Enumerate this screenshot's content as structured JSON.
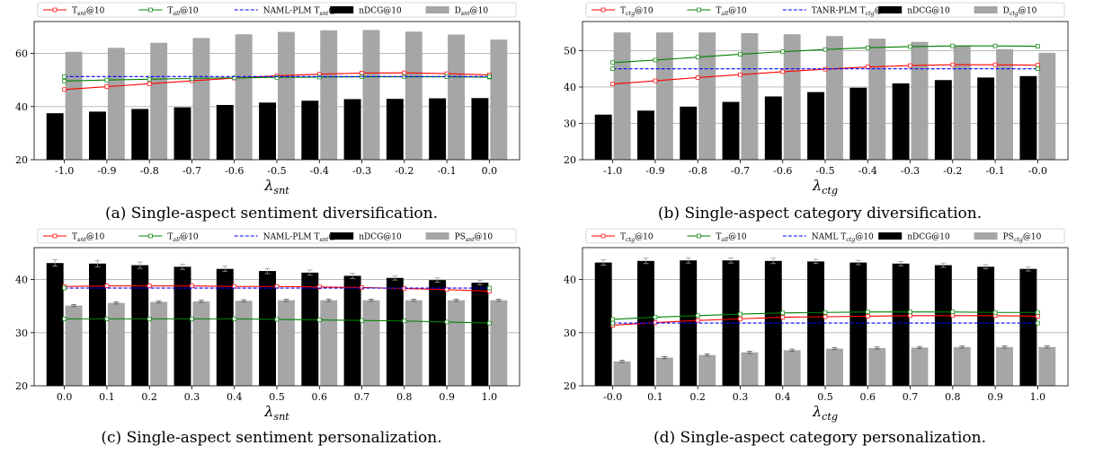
{
  "chart_data": [
    {
      "type": "bar",
      "caption": "(a) Single-aspect sentiment diversification.",
      "xlabel_main": "λ",
      "xlabel_sub": "snt",
      "categories": [
        "-1.0",
        "-0.9",
        "-0.8",
        "-0.7",
        "-0.6",
        "-0.5",
        "-0.4",
        "-0.3",
        "-0.2",
        "-0.1",
        "0.0"
      ],
      "ylim": [
        20,
        72
      ],
      "yticks": [
        20,
        40,
        60
      ],
      "grid": "horizontal",
      "legend_position": "top",
      "bar_series": [
        {
          "name": "nDCG@10",
          "color": "#000000",
          "values": [
            37.5,
            38.1,
            39.1,
            39.7,
            40.6,
            41.5,
            42.2,
            42.8,
            42.9,
            43.1,
            43.2
          ]
        },
        {
          "name": "D_snt@10",
          "color": "#a6a6a6",
          "values": [
            60.6,
            62.1,
            64.0,
            65.8,
            67.2,
            68.1,
            68.7,
            68.8,
            68.2,
            67.1,
            65.2
          ]
        }
      ],
      "line_series": [
        {
          "name": "T_snt@10",
          "color": "#ff0000",
          "values": [
            46.4,
            47.5,
            48.6,
            49.7,
            50.7,
            51.6,
            52.2,
            52.6,
            52.7,
            52.4,
            51.9
          ]
        },
        {
          "name": "T_all@10",
          "color": "#008000",
          "values": [
            49.6,
            50.0,
            50.3,
            50.6,
            50.8,
            51.0,
            51.1,
            51.2,
            51.2,
            51.2,
            51.1
          ]
        },
        {
          "name": "NAML-PLM T_snt@10",
          "color": "#0000ff",
          "dashed": true,
          "values": [
            51.3,
            51.3,
            51.3,
            51.3,
            51.3,
            51.3,
            51.3,
            51.3,
            51.3,
            51.3,
            51.3
          ]
        }
      ],
      "legend": [
        {
          "kind": "line",
          "label": "T",
          "sub": "snt",
          "post": "@10",
          "color": "#ff0000"
        },
        {
          "kind": "line",
          "label": "T",
          "sub": "all",
          "post": "@10",
          "color": "#008000"
        },
        {
          "kind": "dash",
          "label": "NAML-PLM T",
          "sub": "snt",
          "post": "@10",
          "color": "#0000ff"
        },
        {
          "kind": "bar",
          "label": "nDCG@10",
          "sub": "",
          "post": "",
          "color": "#000000"
        },
        {
          "kind": "bar",
          "label": "D",
          "sub": "snt",
          "post": "@10",
          "color": "#a6a6a6"
        }
      ]
    },
    {
      "type": "bar",
      "caption": "(b) Single-aspect category diversification.",
      "xlabel_main": "λ",
      "xlabel_sub": "ctg",
      "categories": [
        "-1.0",
        "-0.9",
        "-0.8",
        "-0.7",
        "-0.6",
        "-0.5",
        "-0.4",
        "-0.3",
        "-0.2",
        "-0.1",
        "-0.0"
      ],
      "ylim": [
        20,
        58
      ],
      "yticks": [
        20,
        30,
        40,
        50
      ],
      "grid": "horizontal",
      "legend_position": "top",
      "bar_series": [
        {
          "name": "nDCG@10",
          "color": "#000000",
          "values": [
            32.4,
            33.5,
            34.6,
            35.9,
            37.4,
            38.6,
            39.8,
            41.0,
            41.9,
            42.6,
            43.0
          ]
        },
        {
          "name": "D_ctg@10",
          "color": "#a6a6a6",
          "values": [
            55.0,
            55.0,
            55.0,
            54.8,
            54.5,
            54.0,
            53.3,
            52.4,
            51.4,
            50.4,
            49.4
          ]
        }
      ],
      "line_series": [
        {
          "name": "T_ctg@10",
          "color": "#ff0000",
          "values": [
            40.8,
            41.7,
            42.6,
            43.4,
            44.2,
            44.9,
            45.5,
            45.9,
            46.1,
            46.1,
            46.0
          ]
        },
        {
          "name": "T_all@10",
          "color": "#008000",
          "values": [
            46.7,
            47.4,
            48.2,
            49.0,
            49.7,
            50.3,
            50.8,
            51.1,
            51.3,
            51.3,
            51.2
          ]
        },
        {
          "name": "TANR-PLM T_ctg@10",
          "color": "#0000ff",
          "dashed": true,
          "values": [
            45.0,
            45.0,
            45.0,
            45.0,
            45.0,
            45.0,
            45.0,
            45.0,
            45.0,
            45.0,
            45.0
          ]
        }
      ],
      "legend": [
        {
          "kind": "line",
          "label": "T",
          "sub": "ctg",
          "post": "@10",
          "color": "#ff0000"
        },
        {
          "kind": "line",
          "label": "T",
          "sub": "all",
          "post": "@10",
          "color": "#008000"
        },
        {
          "kind": "dash",
          "label": "TANR-PLM T",
          "sub": "ctg",
          "post": "@10",
          "color": "#0000ff"
        },
        {
          "kind": "bar",
          "label": "nDCG@10",
          "sub": "",
          "post": "",
          "color": "#000000"
        },
        {
          "kind": "bar",
          "label": "D",
          "sub": "ctg",
          "post": "@10",
          "color": "#a6a6a6"
        }
      ]
    },
    {
      "type": "bar",
      "caption": "(c) Single-aspect sentiment personalization.",
      "xlabel_main": "λ",
      "xlabel_sub": "snt",
      "categories": [
        "0.0",
        "0.1",
        "0.2",
        "0.3",
        "0.4",
        "0.5",
        "0.6",
        "0.7",
        "0.8",
        "0.9",
        "1.0"
      ],
      "ylim": [
        20,
        46
      ],
      "yticks": [
        20,
        30,
        40
      ],
      "grid": "horizontal",
      "legend_position": "top",
      "bar_series": [
        {
          "name": "nDCG@10",
          "color": "#000000",
          "values": [
            43.1,
            43.0,
            42.7,
            42.4,
            42.0,
            41.6,
            41.3,
            40.7,
            40.3,
            39.9,
            39.4
          ],
          "errors": [
            0.6,
            0.6,
            0.6,
            0.5,
            0.5,
            0.5,
            0.5,
            0.5,
            0.4,
            0.4,
            0.4
          ]
        },
        {
          "name": "PS_snt@10",
          "color": "#a6a6a6",
          "values": [
            35.1,
            35.6,
            35.8,
            35.9,
            36.0,
            36.1,
            36.1,
            36.1,
            36.1,
            36.1,
            36.1
          ],
          "errors": [
            0.2,
            0.2,
            0.2,
            0.2,
            0.2,
            0.2,
            0.2,
            0.2,
            0.2,
            0.2,
            0.2
          ]
        }
      ],
      "line_series": [
        {
          "name": "T_snt@10",
          "color": "#ff0000",
          "values": [
            38.7,
            38.8,
            38.8,
            38.8,
            38.7,
            38.7,
            38.6,
            38.5,
            38.3,
            38.1,
            37.8
          ]
        },
        {
          "name": "T_all@10",
          "color": "#008000",
          "values": [
            32.6,
            32.6,
            32.6,
            32.6,
            32.6,
            32.5,
            32.4,
            32.3,
            32.2,
            32.0,
            31.8
          ]
        },
        {
          "name": "NAML-PLM T_snt@10",
          "color": "#0000ff",
          "dashed": true,
          "values": [
            38.4,
            38.4,
            38.4,
            38.4,
            38.4,
            38.4,
            38.4,
            38.4,
            38.4,
            38.4,
            38.4
          ]
        }
      ],
      "legend": [
        {
          "kind": "line",
          "label": "T",
          "sub": "snt",
          "post": "@10",
          "color": "#ff0000"
        },
        {
          "kind": "line",
          "label": "T",
          "sub": "all",
          "post": "@10",
          "color": "#008000"
        },
        {
          "kind": "dash",
          "label": "NAML-PLM T",
          "sub": "snt",
          "post": "@10",
          "color": "#0000ff"
        },
        {
          "kind": "bar",
          "label": "nDCG@10",
          "sub": "",
          "post": "",
          "color": "#000000"
        },
        {
          "kind": "bar",
          "label": "PS",
          "sub": "snt",
          "post": "@10",
          "color": "#a6a6a6"
        }
      ]
    },
    {
      "type": "bar",
      "caption": "(d) Single-aspect category personalization.",
      "xlabel_main": "λ",
      "xlabel_sub": "ctg",
      "categories": [
        "-0.0",
        "0.1",
        "0.2",
        "0.3",
        "0.4",
        "0.5",
        "0.6",
        "0.7",
        "0.8",
        "0.9",
        "1.0"
      ],
      "ylim": [
        20,
        46
      ],
      "yticks": [
        20,
        30,
        40
      ],
      "grid": "horizontal",
      "legend_position": "top",
      "bar_series": [
        {
          "name": "nDCG@10",
          "color": "#000000",
          "values": [
            43.2,
            43.5,
            43.6,
            43.6,
            43.5,
            43.4,
            43.2,
            43.0,
            42.7,
            42.4,
            42.0
          ],
          "errors": [
            0.5,
            0.5,
            0.5,
            0.5,
            0.5,
            0.4,
            0.4,
            0.4,
            0.4,
            0.4,
            0.4
          ]
        },
        {
          "name": "PS_ctg@10",
          "color": "#a6a6a6",
          "values": [
            24.6,
            25.3,
            25.8,
            26.3,
            26.7,
            27.0,
            27.1,
            27.2,
            27.3,
            27.3,
            27.3
          ],
          "errors": [
            0.2,
            0.2,
            0.2,
            0.2,
            0.2,
            0.2,
            0.2,
            0.2,
            0.2,
            0.2,
            0.2
          ]
        }
      ],
      "line_series": [
        {
          "name": "T_ctg@10",
          "color": "#ff0000",
          "values": [
            31.4,
            31.9,
            32.3,
            32.6,
            32.9,
            33.0,
            33.1,
            33.2,
            33.2,
            33.2,
            33.1
          ]
        },
        {
          "name": "T_all@10",
          "color": "#008000",
          "values": [
            32.5,
            32.9,
            33.2,
            33.5,
            33.7,
            33.8,
            33.9,
            33.9,
            33.9,
            33.8,
            33.8
          ]
        },
        {
          "name": "NAML T_ctg@10",
          "color": "#0000ff",
          "dashed": true,
          "values": [
            31.8,
            31.8,
            31.8,
            31.8,
            31.8,
            31.8,
            31.8,
            31.8,
            31.8,
            31.8,
            31.8
          ]
        }
      ],
      "legend": [
        {
          "kind": "line",
          "label": "T",
          "sub": "ctg",
          "post": "@10",
          "color": "#ff0000"
        },
        {
          "kind": "line",
          "label": "T",
          "sub": "all",
          "post": "@10",
          "color": "#008000"
        },
        {
          "kind": "dash",
          "label": "NAML T",
          "sub": "ctg",
          "post": "@10",
          "color": "#0000ff"
        },
        {
          "kind": "bar",
          "label": "nDCG@10",
          "sub": "",
          "post": "",
          "color": "#000000"
        },
        {
          "kind": "bar",
          "label": "PS",
          "sub": "ctg",
          "post": "@10",
          "color": "#a6a6a6"
        }
      ]
    }
  ]
}
